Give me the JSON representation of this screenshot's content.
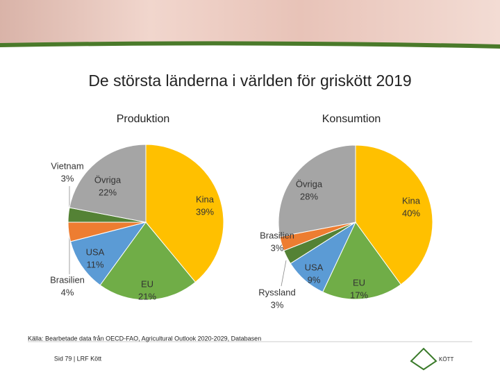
{
  "title": "De största länderna i världen för griskött 2019",
  "source": "Källa: Bearbetade data från OECD-FAO, Agricultural Outlook 2020-2029, Databasen",
  "footer": "Sid 79 | LRF Kött",
  "logo_text": "KÖTT",
  "chart_data": [
    {
      "type": "pie",
      "title": "Produktion",
      "categories": [
        "Kina",
        "EU",
        "USA",
        "Brasilien",
        "Vietnam",
        "Övriga"
      ],
      "values": [
        39,
        21,
        11,
        4,
        3,
        22
      ],
      "value_labels": [
        "39%",
        "21%",
        "11%",
        "4%",
        "3%",
        "22%"
      ],
      "colors": [
        "#ffc000",
        "#70ad47",
        "#5b9bd5",
        "#ed7d31",
        "#548235",
        "#a5a5a5"
      ]
    },
    {
      "type": "pie",
      "title": "Konsumtion",
      "categories": [
        "Kina",
        "EU",
        "USA",
        "Ryssland",
        "Brasilien",
        "Övriga"
      ],
      "values": [
        40,
        17,
        9,
        3,
        3,
        28
      ],
      "value_labels": [
        "40%",
        "17%",
        "9%",
        "3%",
        "3%",
        "28%"
      ],
      "colors": [
        "#ffc000",
        "#70ad47",
        "#5b9bd5",
        "#548235",
        "#ed7d31",
        "#a5a5a5"
      ]
    }
  ]
}
